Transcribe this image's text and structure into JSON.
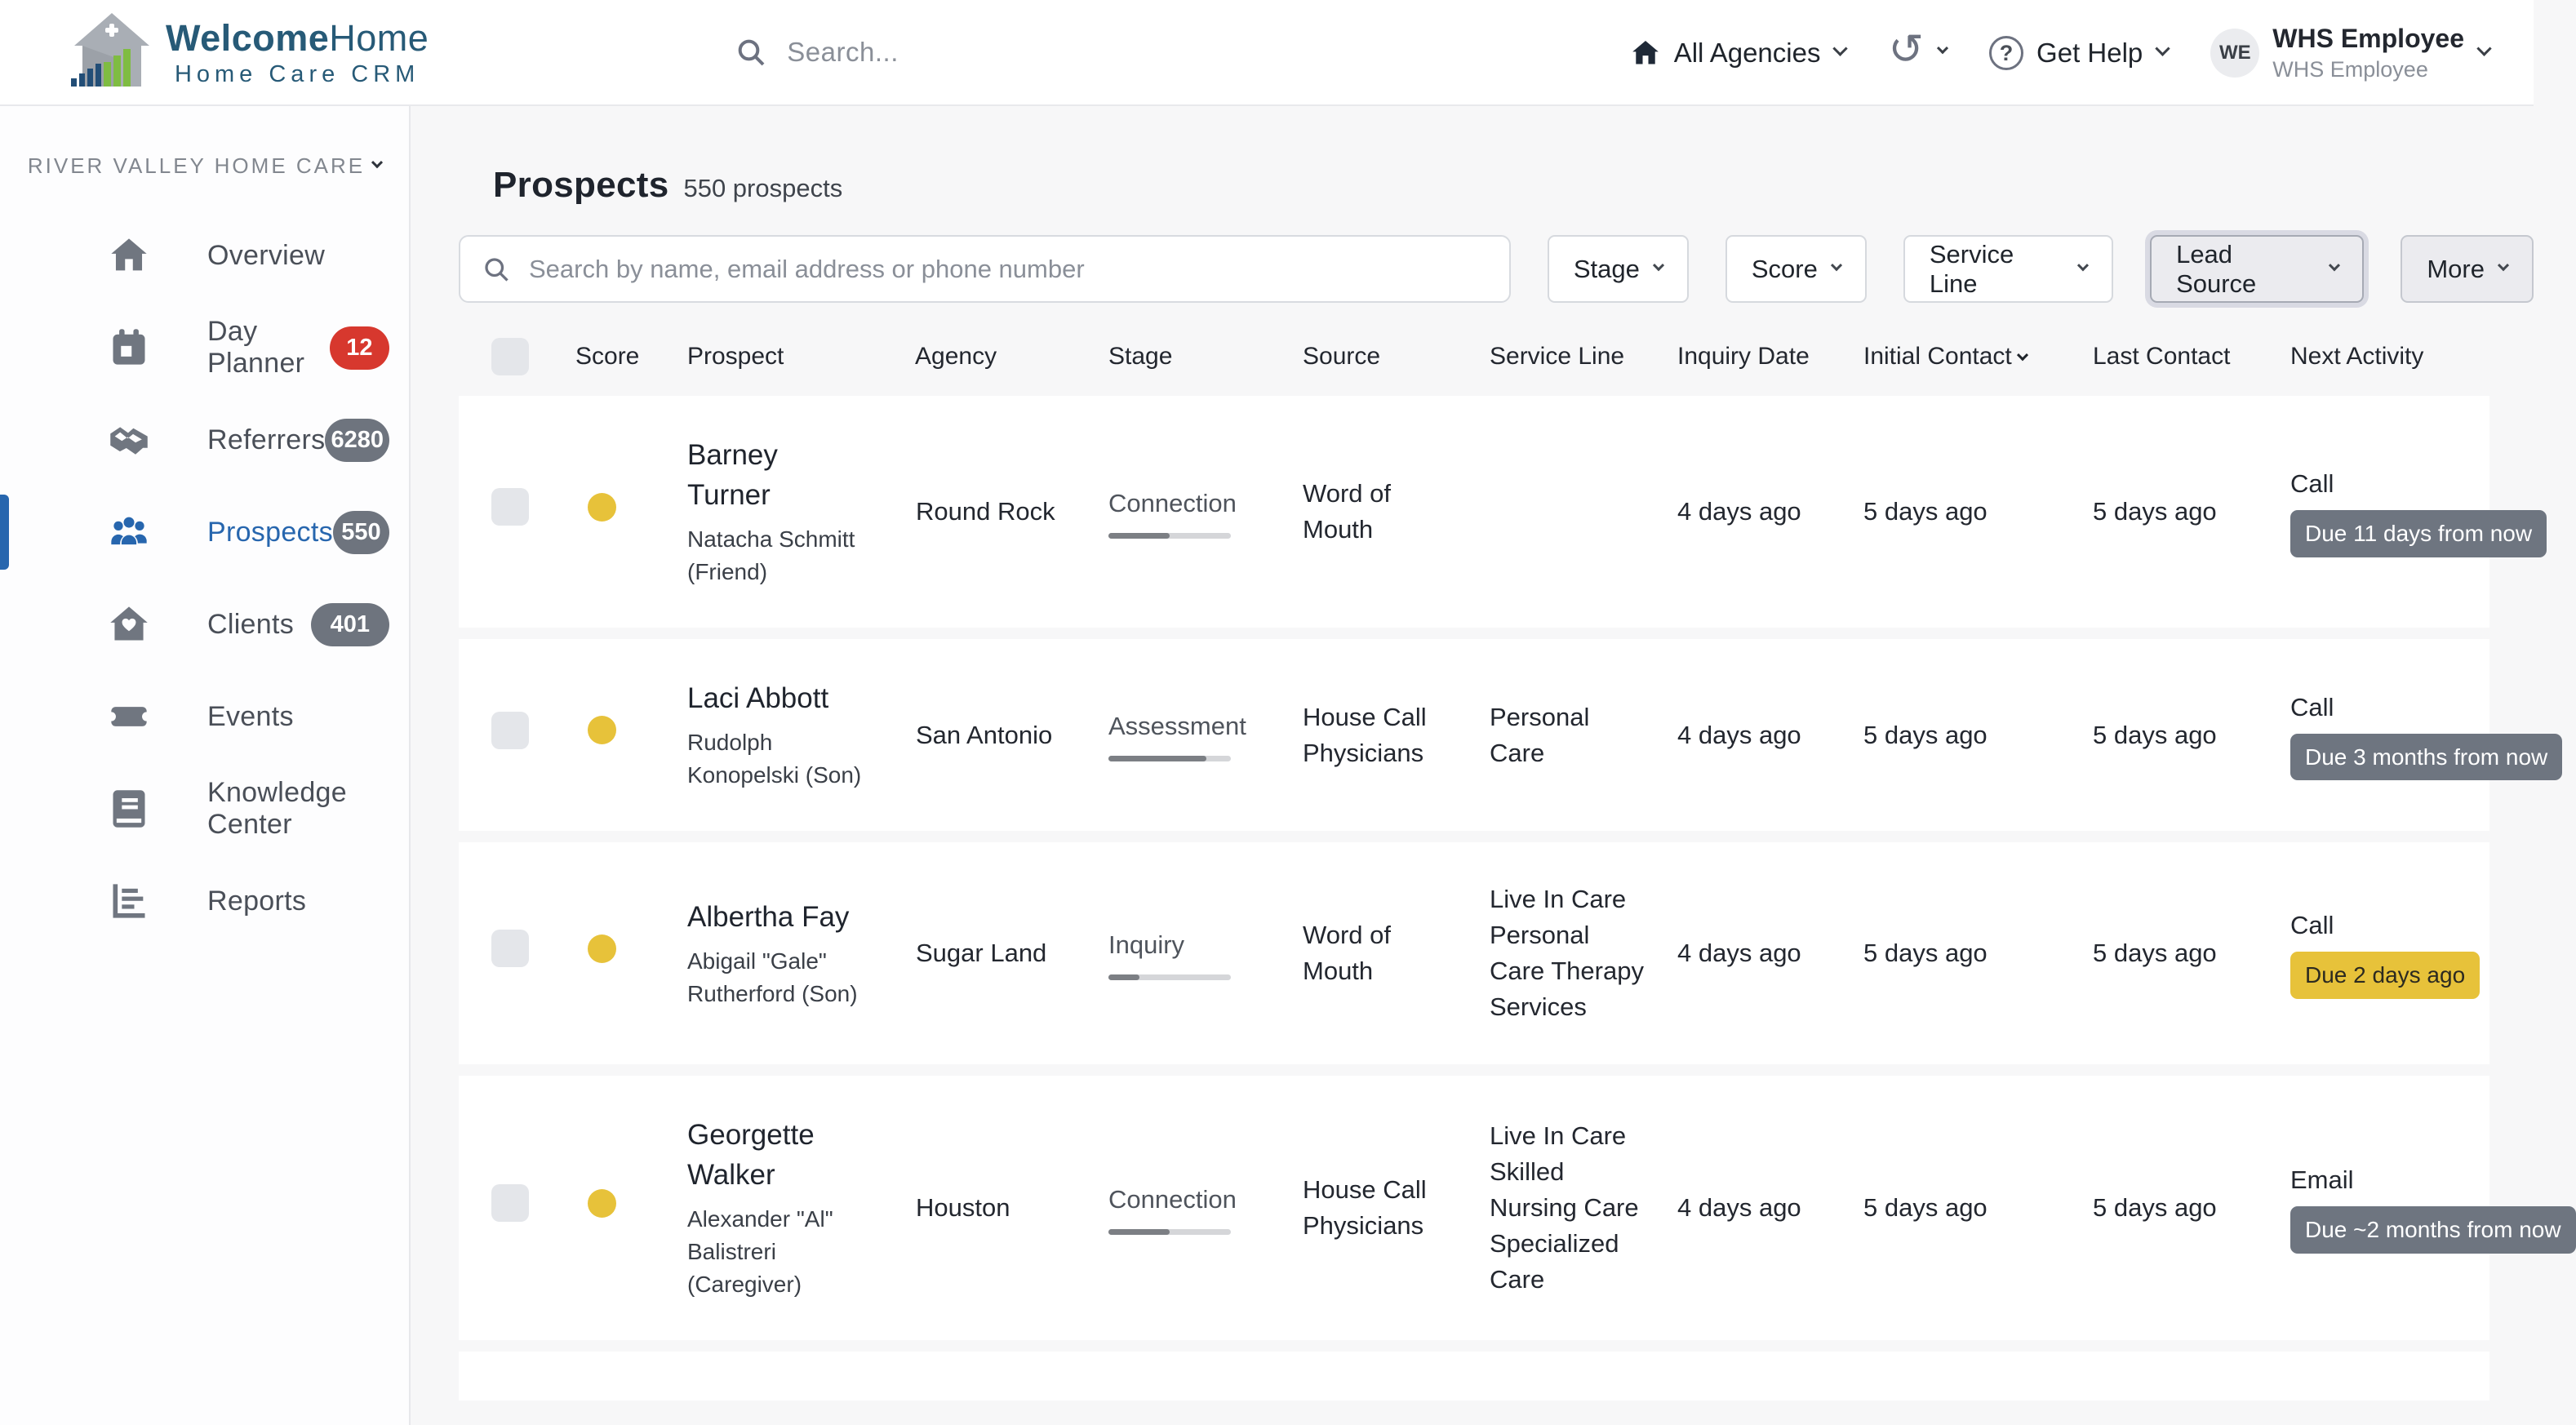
{
  "brand": {
    "title_bold": "Welcome",
    "title_light": "Home",
    "subtitle": "Home Care CRM"
  },
  "topbar": {
    "search_placeholder": "Search...",
    "agencies_label": "All Agencies",
    "help_label": "Get Help",
    "user_initials": "WE",
    "user_name": "WHS Employee",
    "user_role": "WHS Employee"
  },
  "sidebar": {
    "agency_name": "RIVER VALLEY HOME CARE",
    "items": [
      {
        "label": "Overview",
        "icon": "home-icon",
        "badge": "",
        "badge_style": "",
        "active": false
      },
      {
        "label": "Day Planner",
        "icon": "calendar-icon",
        "badge": "12",
        "badge_style": "red",
        "active": false
      },
      {
        "label": "Referrers",
        "icon": "handshake-icon",
        "badge": "6280",
        "badge_style": "gray",
        "active": false
      },
      {
        "label": "Prospects",
        "icon": "people-icon",
        "badge": "550",
        "badge_style": "gray",
        "active": true
      },
      {
        "label": "Clients",
        "icon": "house-heart-icon",
        "badge": "401",
        "badge_style": "gray",
        "active": false
      },
      {
        "label": "Events",
        "icon": "ticket-icon",
        "badge": "",
        "badge_style": "",
        "active": false
      },
      {
        "label": "Knowledge Center",
        "icon": "book-icon",
        "badge": "",
        "badge_style": "",
        "active": false
      },
      {
        "label": "Reports",
        "icon": "report-icon",
        "badge": "",
        "badge_style": "",
        "active": false
      }
    ]
  },
  "main": {
    "title": "Prospects",
    "subtitle": "550 prospects",
    "search_placeholder": "Search by name, email address or phone number",
    "filters": [
      {
        "label": "Stage",
        "style": "plain"
      },
      {
        "label": "Score",
        "style": "plain"
      },
      {
        "label": "Service Line",
        "style": "plain"
      },
      {
        "label": "Lead Source",
        "style": "focused"
      },
      {
        "label": "More",
        "style": "gray"
      }
    ]
  },
  "table": {
    "columns": [
      "Score",
      "Prospect",
      "Agency",
      "Stage",
      "Source",
      "Service Line",
      "Inquiry Date",
      "Initial Contact",
      "Last Contact",
      "Next Activity"
    ],
    "sorted_column": "Initial Contact",
    "rows": [
      {
        "name": "Barney Turner",
        "contact": "Natacha Schmitt (Friend)",
        "agency": "Round Rock",
        "stage": "Connection",
        "stage_progress": 50,
        "source": "Word of Mouth",
        "service_line": "",
        "inquiry_date": "4 days ago",
        "initial_contact": "5 days ago",
        "last_contact": "5 days ago",
        "activity_type": "Call",
        "activity_due": "Due 11 days from now",
        "due_style": "gray",
        "score_color": "#E7C23A"
      },
      {
        "name": "Laci Abbott",
        "contact": "Rudolph Konopelski (Son)",
        "agency": "San Antonio",
        "stage": "Assessment",
        "stage_progress": 80,
        "source": "House Call Physicians",
        "service_line": "Personal Care",
        "inquiry_date": "4 days ago",
        "initial_contact": "5 days ago",
        "last_contact": "5 days ago",
        "activity_type": "Call",
        "activity_due": "Due 3 months from now",
        "due_style": "gray",
        "score_color": "#E7C23A"
      },
      {
        "name": "Albertha Fay",
        "contact": "Abigail \"Gale\" Rutherford (Son)",
        "agency": "Sugar Land",
        "stage": "Inquiry",
        "stage_progress": 25,
        "source": "Word of Mouth",
        "service_line": "Live In Care Personal Care Therapy Services",
        "inquiry_date": "4 days ago",
        "initial_contact": "5 days ago",
        "last_contact": "5 days ago",
        "activity_type": "Call",
        "activity_due": "Due 2 days ago",
        "due_style": "yellow",
        "score_color": "#E7C23A"
      },
      {
        "name": "Georgette Walker",
        "contact": "Alexander \"Al\" Balistreri (Caregiver)",
        "agency": "Houston",
        "stage": "Connection",
        "stage_progress": 50,
        "source": "House Call Physicians",
        "service_line": "Live In Care Skilled Nursing Care Specialized Care",
        "inquiry_date": "4 days ago",
        "initial_contact": "5 days ago",
        "last_contact": "5 days ago",
        "activity_type": "Email",
        "activity_due": "Due ~2 months from now",
        "due_style": "gray",
        "score_color": "#E7C23A"
      }
    ]
  },
  "colors": {
    "accent_blue": "#2766AE",
    "badge_red": "#D7382E",
    "badge_gray": "#6E7580",
    "score_yellow": "#E7C23A",
    "brand_navy": "#275A77"
  }
}
